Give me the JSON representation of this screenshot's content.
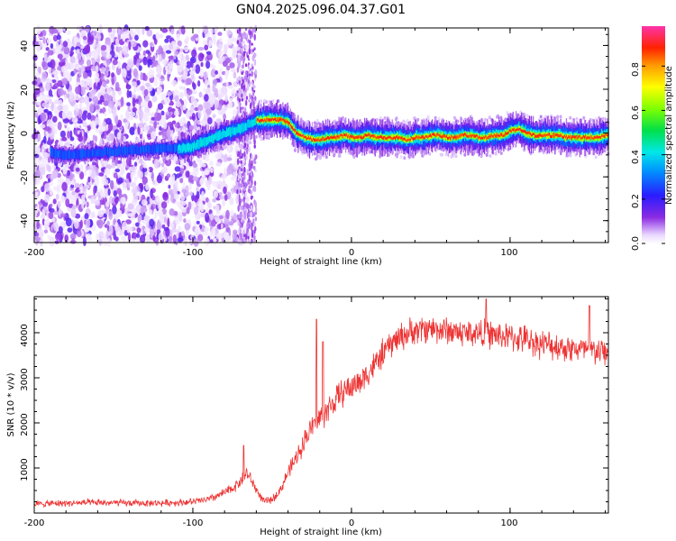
{
  "chart_data": [
    {
      "type": "heatmap",
      "title": "GN04.2025.096.04.37.G01",
      "xlabel": "Height of straight line (km)",
      "ylabel": "Frequency (Hz)",
      "xlim": [
        -200,
        162
      ],
      "ylim": [
        -50,
        48
      ],
      "x_ticks": [
        -200,
        -100,
        0,
        100
      ],
      "y_ticks": [
        -40,
        -20,
        0,
        20,
        40
      ],
      "x_tick_labels": [
        "-200",
        "-100",
        "0",
        "100"
      ],
      "y_tick_labels": [
        "-40",
        "-20",
        "0",
        "20",
        "40"
      ],
      "colorbar": {
        "label": "Normalized spectral amplitude",
        "range": [
          0,
          0.98
        ],
        "ticks": [
          0,
          0.2,
          0.4,
          0.6,
          0.8
        ],
        "tick_labels": [
          "0.0",
          "0.2",
          "0.4",
          "0.6",
          "0.8"
        ]
      },
      "ridge": {
        "x": [
          -200,
          -180,
          -160,
          -140,
          -120,
          -108,
          -100,
          -90,
          -80,
          -75,
          -70,
          -65,
          -60,
          -55,
          -50,
          -45,
          -40,
          -35,
          -30,
          -25,
          -20,
          -15,
          -10,
          -5,
          0,
          5,
          10,
          15,
          20,
          25,
          30,
          35,
          40,
          45,
          50,
          55,
          60,
          65,
          70,
          75,
          80,
          85,
          90,
          95,
          100,
          105,
          110,
          115,
          120,
          125,
          130,
          135,
          140,
          145,
          150,
          155,
          160
        ],
        "y": [
          -8,
          -10,
          -9,
          -8,
          -7,
          -7,
          -6,
          -3,
          0,
          1,
          2,
          4,
          6,
          6,
          6,
          6,
          5,
          0,
          -2,
          -3,
          -3,
          -2,
          -2,
          -1,
          -2,
          -2,
          -1,
          -2,
          -2,
          -2,
          -2,
          -3,
          -2,
          -2,
          -1,
          -1,
          -2,
          -2,
          -1,
          -1,
          -2,
          -2,
          -1,
          -1,
          1,
          2,
          0,
          -1,
          -1,
          -1,
          -1,
          -2,
          -2,
          -2,
          -2,
          -2,
          -1
        ]
      }
    },
    {
      "type": "line",
      "xlabel": "Height of straight line (km)",
      "ylabel": "SNR (10 * v/v)",
      "xlim": [
        -200,
        162
      ],
      "ylim": [
        0,
        4800
      ],
      "x_ticks": [
        -200,
        -100,
        0,
        100
      ],
      "y_ticks": [
        1000,
        2000,
        3000,
        4000
      ],
      "x_tick_labels": [
        "-200",
        "-100",
        "0",
        "100"
      ],
      "y_tick_labels": [
        "1000",
        "2000",
        "3000",
        "4000"
      ],
      "series": [
        {
          "name": "SNR",
          "color": "#ee3333",
          "x": [
            -200,
            -180,
            -160,
            -140,
            -120,
            -100,
            -90,
            -80,
            -75,
            -70,
            -66,
            -62,
            -58,
            -55,
            -50,
            -45,
            -40,
            -35,
            -30,
            -25,
            -20,
            -15,
            -10,
            -5,
            0,
            5,
            10,
            15,
            20,
            25,
            30,
            40,
            50,
            60,
            70,
            80,
            90,
            100,
            110,
            120,
            130,
            140,
            150,
            162
          ],
          "y": [
            200,
            220,
            230,
            220,
            220,
            250,
            300,
            450,
            550,
            700,
            900,
            650,
            400,
            250,
            300,
            500,
            900,
            1200,
            1600,
            1900,
            2100,
            2300,
            2500,
            2700,
            2800,
            2900,
            3100,
            3300,
            3550,
            3750,
            3900,
            4050,
            4100,
            4050,
            4000,
            4000,
            3950,
            3900,
            3850,
            3750,
            3700,
            3650,
            3600,
            3550
          ],
          "noise_amplitude": 380,
          "spikes": [
            {
              "x": -68,
              "y": 1500
            },
            {
              "x": -22,
              "y": 4300
            },
            {
              "x": -18,
              "y": 3800
            },
            {
              "x": 85,
              "y": 4750
            },
            {
              "x": 150,
              "y": 4600
            }
          ]
        }
      ]
    }
  ]
}
